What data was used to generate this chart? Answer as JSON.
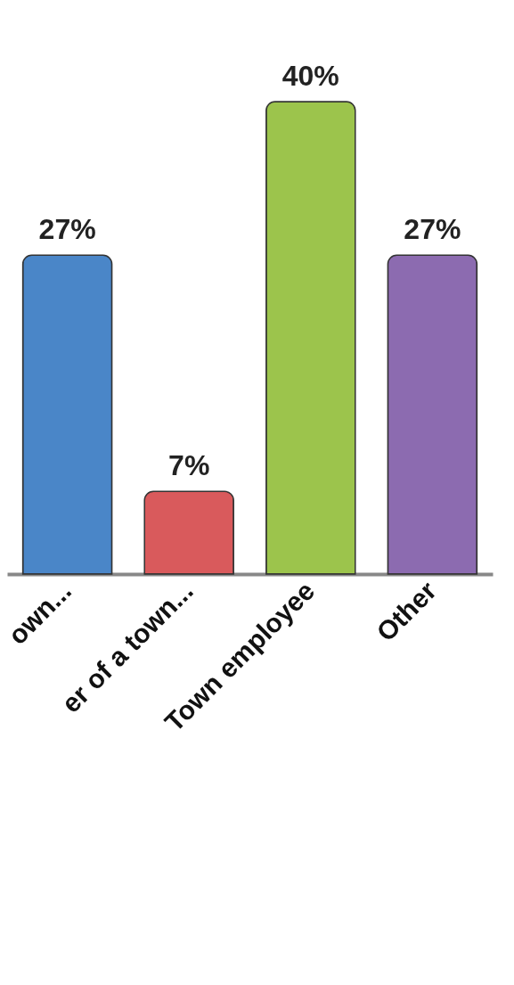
{
  "chart_data": {
    "type": "bar",
    "categories": [
      "own...",
      "er of a town...",
      "Town employee",
      "Other"
    ],
    "values": [
      27,
      7,
      40,
      27
    ],
    "colors": [
      "#4a86c8",
      "#d95a5c",
      "#9cc44c",
      "#8c6bb0"
    ],
    "value_labels": [
      "27%",
      "7%",
      "40%",
      "27%"
    ]
  }
}
